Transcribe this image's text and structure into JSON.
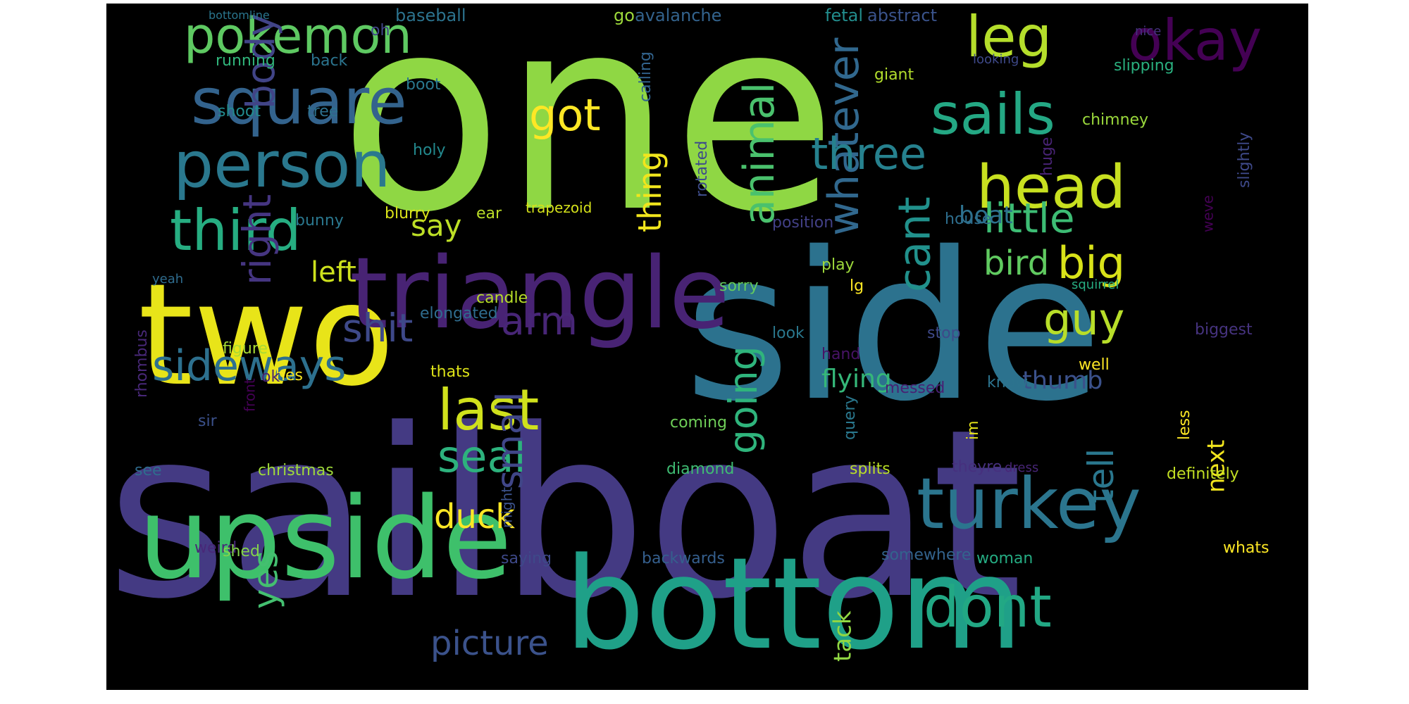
{
  "figure": {
    "kind": "word-cloud",
    "background": "#000000",
    "colormap": "viridis",
    "words": [
      {
        "text": "one",
        "color": "#8fd744"
      },
      {
        "text": "sailboat",
        "color": "#443a83"
      },
      {
        "text": "side",
        "color": "#2c728e"
      },
      {
        "text": "two",
        "color": "#e8e419"
      },
      {
        "text": "bottom",
        "color": "#1fa088"
      },
      {
        "text": "upside",
        "color": "#3ec06b"
      },
      {
        "text": "triangle",
        "color": "#482374"
      },
      {
        "text": "turkey",
        "color": "#2b758e"
      },
      {
        "text": "head",
        "color": "#c8e020"
      },
      {
        "text": "person",
        "color": "#2a788e"
      },
      {
        "text": "square",
        "color": "#33638d"
      },
      {
        "text": "okay",
        "color": "#440154"
      },
      {
        "text": "sails",
        "color": "#24a884"
      },
      {
        "text": "leg",
        "color": "#b5de2b"
      },
      {
        "text": "pokemon",
        "color": "#5ec962"
      },
      {
        "text": "third",
        "color": "#26ad81"
      },
      {
        "text": "dont",
        "color": "#22a884"
      },
      {
        "text": "last",
        "color": "#d0e11c"
      },
      {
        "text": "whatever",
        "color": "#31688e"
      },
      {
        "text": "animal",
        "color": "#4ac16d"
      },
      {
        "text": "three",
        "color": "#26818e"
      },
      {
        "text": "little",
        "color": "#3dbc74"
      },
      {
        "text": "got",
        "color": "#fde725"
      },
      {
        "text": "sideways",
        "color": "#2d708e"
      },
      {
        "text": "seal",
        "color": "#2db27d"
      },
      {
        "text": "cant",
        "color": "#21918c"
      },
      {
        "text": "big",
        "color": "#d8e219"
      },
      {
        "text": "guy",
        "color": "#b8de29"
      },
      {
        "text": "shit",
        "color": "#3e4989"
      },
      {
        "text": "arm",
        "color": "#482677"
      },
      {
        "text": "going",
        "color": "#2fb47c"
      },
      {
        "text": "small",
        "color": "#404688"
      },
      {
        "text": "bird",
        "color": "#60ca60"
      },
      {
        "text": "tell",
        "color": "#2a778e"
      },
      {
        "text": "body",
        "color": "#414487"
      },
      {
        "text": "right",
        "color": "#453581"
      },
      {
        "text": "duck",
        "color": "#fde725"
      },
      {
        "text": "picture",
        "color": "#3b528b"
      },
      {
        "text": "yes",
        "color": "#44bf70"
      },
      {
        "text": "thing",
        "color": "#f1e51d"
      },
      {
        "text": "say",
        "color": "#bddf26"
      },
      {
        "text": "left",
        "color": "#cde11d"
      },
      {
        "text": "flying",
        "color": "#35b779"
      },
      {
        "text": "thumb",
        "color": "#3b518b"
      },
      {
        "text": "boat",
        "color": "#2d718e"
      },
      {
        "text": "next",
        "color": "#f1e51d"
      },
      {
        "text": "tack",
        "color": "#90d743"
      },
      {
        "text": "baseball",
        "color": "#2c738e"
      },
      {
        "text": "avalanche",
        "color": "#33638d"
      },
      {
        "text": "go",
        "color": "#9dd93b"
      },
      {
        "text": "fetal",
        "color": "#228d8d"
      },
      {
        "text": "abstract",
        "color": "#3a538b"
      },
      {
        "text": "bottomline",
        "color": "#2a768e"
      },
      {
        "text": "oh",
        "color": "#404588"
      },
      {
        "text": "nice",
        "color": "#46317e"
      },
      {
        "text": "looking",
        "color": "#3e4989"
      },
      {
        "text": "running",
        "color": "#31b57b"
      },
      {
        "text": "back",
        "color": "#2b748e"
      },
      {
        "text": "boot",
        "color": "#2a788e"
      },
      {
        "text": "calling",
        "color": "#32648e"
      },
      {
        "text": "giant",
        "color": "#b2dd2d"
      },
      {
        "text": "slipping",
        "color": "#2ab07f"
      },
      {
        "text": "shoot",
        "color": "#228b8d"
      },
      {
        "text": "tree",
        "color": "#2d708e"
      },
      {
        "text": "chimney",
        "color": "#9bd93c"
      },
      {
        "text": "slightly",
        "color": "#3e4989"
      },
      {
        "text": "holy",
        "color": "#23898e"
      },
      {
        "text": "rotated",
        "color": "#3e4c8a"
      },
      {
        "text": "huge",
        "color": "#482374"
      },
      {
        "text": "weve",
        "color": "#440154"
      },
      {
        "text": "blurry",
        "color": "#dae319"
      },
      {
        "text": "ear",
        "color": "#bade28"
      },
      {
        "text": "trapezoid",
        "color": "#d5e21a"
      },
      {
        "text": "bunny",
        "color": "#2a778e"
      },
      {
        "text": "position",
        "color": "#424086"
      },
      {
        "text": "house",
        "color": "#2e6e8e"
      },
      {
        "text": "play",
        "color": "#9dd93b"
      },
      {
        "text": "lg",
        "color": "#fde725"
      },
      {
        "text": "candle",
        "color": "#b8de29"
      },
      {
        "text": "sorry",
        "color": "#63cb5f"
      },
      {
        "text": "yeah",
        "color": "#2f6c8e"
      },
      {
        "text": "squirrel",
        "color": "#27ad81"
      },
      {
        "text": "rhombus",
        "color": "#482878"
      },
      {
        "text": "elongated",
        "color": "#2f6c8e"
      },
      {
        "text": "figure",
        "color": "#a8db34"
      },
      {
        "text": "look",
        "color": "#2a788e"
      },
      {
        "text": "stop",
        "color": "#3e4989"
      },
      {
        "text": "biggest",
        "color": "#46337f"
      },
      {
        "text": "hand",
        "color": "#471365"
      },
      {
        "text": "hes",
        "color": "#f8e621"
      },
      {
        "text": "front",
        "color": "#440154"
      },
      {
        "text": "ok",
        "color": "#482475"
      },
      {
        "text": "thats",
        "color": "#dde318"
      },
      {
        "text": "messed",
        "color": "#482173"
      },
      {
        "text": "know",
        "color": "#2c738e"
      },
      {
        "text": "well",
        "color": "#fde725"
      },
      {
        "text": "im",
        "color": "#e5e419"
      },
      {
        "text": "query",
        "color": "#2a788e"
      },
      {
        "text": "less",
        "color": "#fde725"
      },
      {
        "text": "sir",
        "color": "#3b518b"
      },
      {
        "text": "coming",
        "color": "#6ece58"
      },
      {
        "text": "see",
        "color": "#2f6c8e"
      },
      {
        "text": "christmas",
        "color": "#9fda3a"
      },
      {
        "text": "diamond",
        "color": "#3fbc73"
      },
      {
        "text": "splits",
        "color": "#bade28"
      },
      {
        "text": "theyre",
        "color": "#46307e"
      },
      {
        "text": "dress",
        "color": "#482677"
      },
      {
        "text": "definitely",
        "color": "#c2df23"
      },
      {
        "text": "might",
        "color": "#3b528b"
      },
      {
        "text": "weird",
        "color": "#482878"
      },
      {
        "text": "shed",
        "color": "#84d44b"
      },
      {
        "text": "saying",
        "color": "#3e4989"
      },
      {
        "text": "backwards",
        "color": "#355f8d"
      },
      {
        "text": "somewhere",
        "color": "#33638d"
      },
      {
        "text": "woman",
        "color": "#25ab82"
      },
      {
        "text": "whats",
        "color": "#fde725"
      },
      {
        "text": "chest",
        "color": "#35b779"
      }
    ]
  }
}
